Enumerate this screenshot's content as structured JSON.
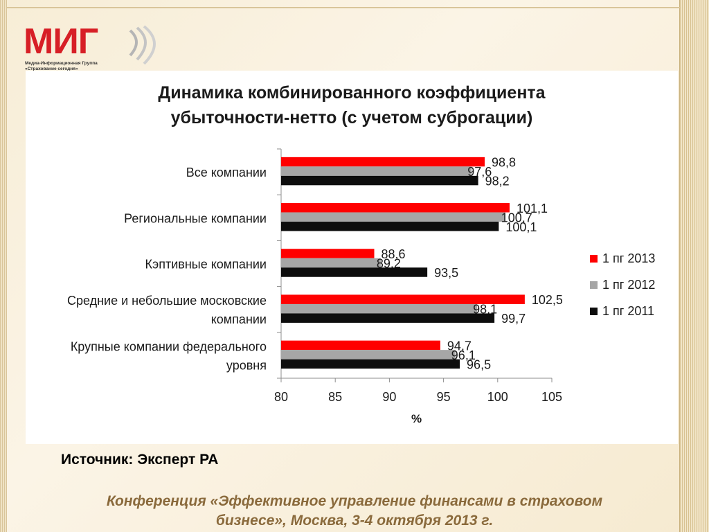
{
  "logo": {
    "text": "МИГ",
    "subtitle_line1": "Медиа-Информационная Группа",
    "subtitle_line2": "«Страхование сегодня»"
  },
  "chart_data": {
    "type": "bar",
    "orientation": "horizontal",
    "title_line1": "Динамика комбинированного коэффициента",
    "title_line2": "убыточности-нетто (с учетом суброгации)",
    "xlabel": "%",
    "xlim": [
      80,
      105
    ],
    "xticks": [
      "80",
      "85",
      "90",
      "95",
      "100",
      "105"
    ],
    "categories": [
      "Все компании",
      "Региональные компании",
      "Кэптивные компании",
      "Средние и небольшие московские компании",
      "Крупные компании федерального уровня"
    ],
    "category_lines": [
      [
        "Все компании"
      ],
      [
        "Региональные компании"
      ],
      [
        "Кэптивные компании"
      ],
      [
        "Средние и небольшие московские",
        "компании"
      ],
      [
        "Крупные компании федерального",
        "уровня"
      ]
    ],
    "series": [
      {
        "name": "1 пг 2013",
        "color": "#ff0000",
        "values": [
          98.8,
          101.1,
          88.6,
          102.5,
          94.7
        ],
        "labels": [
          "98,8",
          "101,1",
          "88,6",
          "102,5",
          "94,7"
        ]
      },
      {
        "name": "1 пг 2012",
        "color": "#a6a6a6",
        "values": [
          97.6,
          100.7,
          89.2,
          98.1,
          96.1
        ],
        "labels": [
          "97,6",
          "100,7",
          "89,2",
          "98,1",
          "96,1"
        ]
      },
      {
        "name": "1 пг 2011",
        "color": "#0d0d0d",
        "values": [
          98.2,
          100.1,
          93.5,
          99.7,
          96.5
        ],
        "labels": [
          "98,2",
          "100,1",
          "93,5",
          "99,7",
          "96,5"
        ]
      }
    ],
    "legend_position": "right",
    "grid": false
  },
  "source_text": "Источник: Эксперт РА",
  "footer_line1": "Конференция «Эффективное управление финансами в страховом",
  "footer_line2": "бизнесе», Москва, 3-4 октября 2013 г."
}
